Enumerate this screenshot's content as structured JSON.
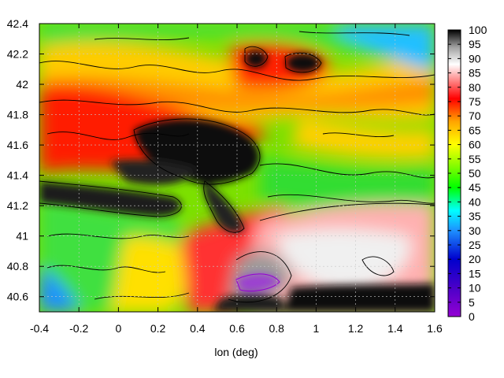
{
  "chart_data": {
    "type": "heatmap",
    "title": "",
    "xlabel": "lon (deg)",
    "ylabel": "",
    "xlim": [
      -0.4,
      1.6
    ],
    "ylim": [
      40.5,
      42.4
    ],
    "x_ticks": [
      "-0.4",
      "-0.2",
      "0",
      "0.2",
      "0.4",
      "0.6",
      "0.8",
      "1",
      "1.2",
      "1.4",
      "1.6"
    ],
    "y_ticks": [
      "40.6",
      "40.8",
      "41",
      "41.2",
      "41.4",
      "41.6",
      "41.8",
      "42",
      "42.2",
      "42.4"
    ],
    "colorbar": {
      "range": [
        0,
        100
      ],
      "ticks": [
        "0",
        "5",
        "10",
        "15",
        "20",
        "25",
        "30",
        "35",
        "40",
        "45",
        "50",
        "55",
        "60",
        "65",
        "70",
        "75",
        "80",
        "85",
        "90",
        "95",
        "100"
      ],
      "palette": [
        "#9400d3",
        "#0000cd",
        "#1e90ff",
        "#00ffff",
        "#00ff00",
        "#7cfc00",
        "#ffff00",
        "#ffa500",
        "#ff0000",
        "#ff8080",
        "#ffffff",
        "#a0a0a0",
        "#000000"
      ]
    },
    "grid": true,
    "contours": true,
    "regions": [
      {
        "name": "high-ne",
        "lon": 0.9,
        "lat": 40.75,
        "value": 95
      },
      {
        "name": "dark-center",
        "lon": 0.35,
        "lat": 41.55,
        "value": 100
      },
      {
        "name": "dark-band-west",
        "lon": -0.1,
        "lat": 41.25,
        "value": 98
      },
      {
        "name": "dark-pocket-north1",
        "lon": 0.68,
        "lat": 42.13,
        "value": 98
      },
      {
        "name": "dark-pocket-north2",
        "lon": 0.9,
        "lat": 42.12,
        "value": 98
      },
      {
        "name": "green-north",
        "lon": 1.2,
        "lat": 42.25,
        "value": 45
      },
      {
        "name": "green-east",
        "lon": 1.35,
        "lat": 41.45,
        "value": 48
      },
      {
        "name": "green-west",
        "lon": -0.2,
        "lat": 40.95,
        "value": 45
      },
      {
        "name": "blue-sw",
        "lon": -0.38,
        "lat": 40.55,
        "value": 35
      },
      {
        "name": "purple-patch",
        "lon": 0.75,
        "lat": 40.65,
        "value": 12
      }
    ]
  }
}
